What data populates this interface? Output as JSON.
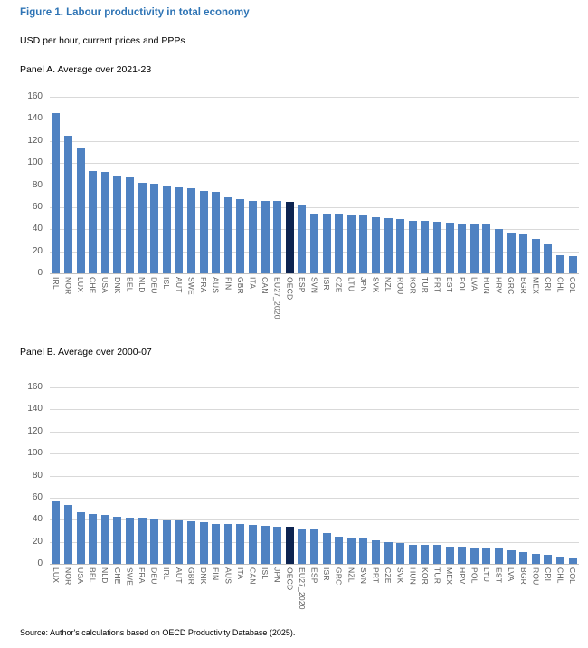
{
  "page": {
    "title": "Figure 1. Labour productivity in total economy",
    "subtitle": "USD per hour, current prices and PPPs",
    "source": "Source: Author's calculations based on OECD Productivity Database (2025).",
    "colors": {
      "title_text": "#2e74b5",
      "bar": "#4f82c2",
      "highlight": "#0d2451",
      "grid": "#d9d9d9",
      "axis": "#bfbfbf",
      "tick_text": "#595959"
    }
  },
  "chart_data": [
    {
      "type": "bar",
      "title": "Panel A. Average over 2021-23",
      "ylim": [
        0,
        160
      ],
      "yticks": [
        0,
        20,
        40,
        60,
        80,
        100,
        120,
        140,
        160
      ],
      "grid": true,
      "legend": false,
      "highlight_category": "OECD",
      "categories": [
        "IRL",
        "NOR",
        "LUX",
        "CHE",
        "USA",
        "DNK",
        "BEL",
        "NLD",
        "DEU",
        "ISL",
        "AUT",
        "SWE",
        "FRA",
        "AUS",
        "FIN",
        "GBR",
        "ITA",
        "CAN",
        "EU27_2020",
        "OECD",
        "ESP",
        "SVN",
        "ISR",
        "CZE",
        "LTU",
        "JPN",
        "SVK",
        "NZL",
        "ROU",
        "KOR",
        "TUR",
        "PRT",
        "EST",
        "POL",
        "LVA",
        "HUN",
        "HRV",
        "GRC",
        "BGR",
        "MEX",
        "CRI",
        "CHL",
        "COL"
      ],
      "values": [
        145,
        125,
        114,
        93,
        92,
        88.5,
        87,
        82,
        81,
        80,
        78,
        77.5,
        75,
        74,
        69,
        67,
        66,
        65.5,
        65.5,
        65,
        62.5,
        54,
        53.5,
        53,
        52.5,
        52.5,
        51,
        50,
        49,
        48,
        47.5,
        46.5,
        46,
        45.5,
        45,
        44,
        40,
        36.5,
        35,
        31,
        26,
        16.5,
        16
      ]
    },
    {
      "type": "bar",
      "title": "Panel B. Average over 2000-07",
      "ylim": [
        0,
        160
      ],
      "yticks": [
        0,
        20,
        40,
        60,
        80,
        100,
        120,
        140,
        160
      ],
      "grid": true,
      "legend": false,
      "highlight_category": "OECD",
      "categories": [
        "LUX",
        "NOR",
        "USA",
        "BEL",
        "NLD",
        "CHE",
        "SWE",
        "FRA",
        "DEU",
        "IRL",
        "AUT",
        "GBR",
        "DNK",
        "FIN",
        "AUS",
        "ITA",
        "CAN",
        "ISL",
        "JPN",
        "OECD",
        "EU27_2020",
        "ESP",
        "ISR",
        "GRC",
        "NZL",
        "SVN",
        "PRT",
        "CZE",
        "SVK",
        "HUN",
        "KOR",
        "TUR",
        "MEX",
        "HRV",
        "POL",
        "LTU",
        "EST",
        "LVA",
        "BGR",
        "ROU",
        "CRI",
        "CHL",
        "COL"
      ],
      "values": [
        57,
        53.5,
        47,
        45,
        44,
        42.5,
        42,
        41.5,
        41,
        39.5,
        39,
        38.5,
        37.5,
        36.5,
        36.5,
        36,
        35.5,
        34.5,
        34,
        33.5,
        31.5,
        31,
        27.5,
        25,
        24,
        23.5,
        21.5,
        19.5,
        18.5,
        17.5,
        17.5,
        17,
        16,
        15.5,
        14.5,
        14.5,
        14,
        12,
        10.5,
        9,
        8.5,
        5.5,
        5
      ]
    }
  ]
}
